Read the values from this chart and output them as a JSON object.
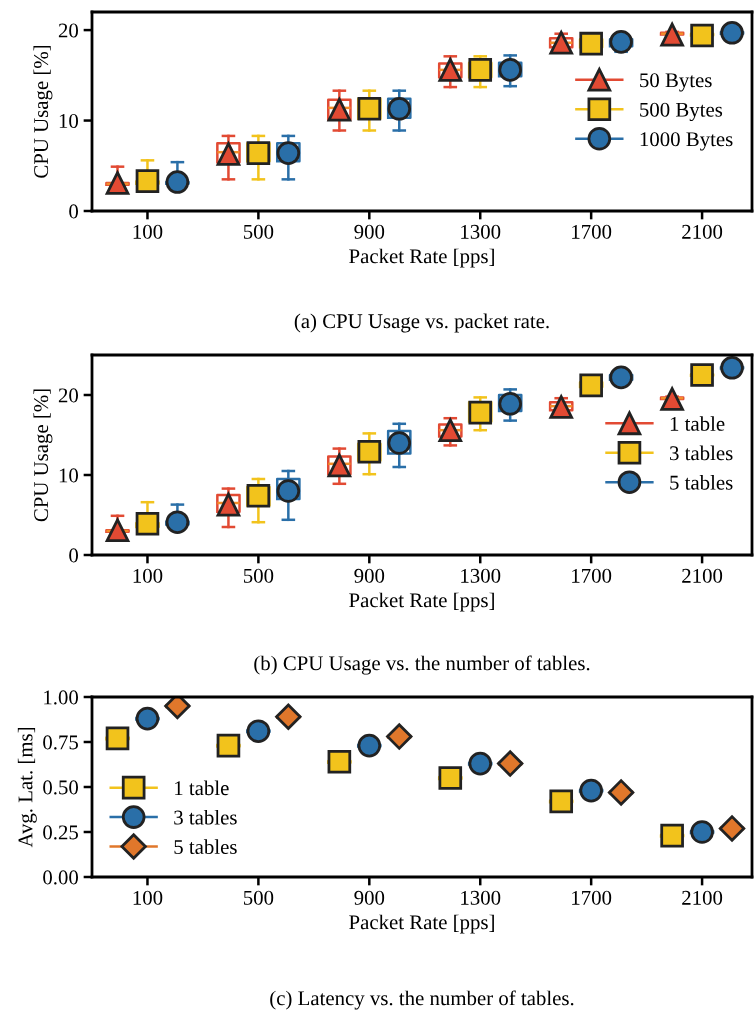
{
  "chart_data": [
    {
      "type": "box",
      "xlabel": "Packet Rate [pps]",
      "ylabel": "CPU Usage [%]",
      "categories": [
        "100",
        "500",
        "900",
        "1300",
        "1700",
        "2100"
      ],
      "ylim": [
        0,
        22
      ],
      "yticks": [
        0,
        10,
        20
      ],
      "grid": false,
      "legend": "right",
      "annotations": [
        "(a) CPU Usage vs. packet rate."
      ],
      "series": [
        {
          "name": "50 Bytes",
          "color": "#e24a33",
          "marker": "triangle",
          "boxes": [
            {
              "low": 2.8,
              "q1": 2.9,
              "median": 3.0,
              "q3": 3.1,
              "high": 4.9,
              "mean": 3.1
            },
            {
              "low": 3.5,
              "q1": 5.4,
              "median": 6.5,
              "q3": 7.5,
              "high": 8.3,
              "mean": 6.3
            },
            {
              "low": 8.9,
              "q1": 10.1,
              "median": 11.4,
              "q3": 12.3,
              "high": 13.3,
              "mean": 11.2
            },
            {
              "low": 13.7,
              "q1": 14.8,
              "median": 15.6,
              "q3": 16.3,
              "high": 17.1,
              "mean": 15.6
            },
            {
              "low": 17.6,
              "q1": 18.1,
              "median": 18.6,
              "q3": 19.1,
              "high": 19.6,
              "mean": 18.6
            },
            {
              "low": 19.4,
              "q1": 19.5,
              "median": 19.6,
              "q3": 19.7,
              "high": 19.8,
              "mean": 19.5
            }
          ]
        },
        {
          "name": "500 Bytes",
          "color": "#f2c31c",
          "marker": "square",
          "boxes": [
            {
              "low": 2.9,
              "q1": 3.0,
              "median": 3.1,
              "q3": 3.3,
              "high": 5.6,
              "mean": 3.3
            },
            {
              "low": 3.5,
              "q1": 5.5,
              "median": 6.6,
              "q3": 7.5,
              "high": 8.3,
              "mean": 6.4
            },
            {
              "low": 8.9,
              "q1": 10.2,
              "median": 11.4,
              "q3": 12.4,
              "high": 13.3,
              "mean": 11.3
            },
            {
              "low": 13.7,
              "q1": 14.8,
              "median": 15.6,
              "q3": 16.4,
              "high": 17.1,
              "mean": 15.6
            },
            {
              "low": 17.6,
              "q1": 18.1,
              "median": 18.6,
              "q3": 19.0,
              "high": 19.5,
              "mean": 18.5
            },
            {
              "low": 19.3,
              "q1": 19.4,
              "median": 19.5,
              "q3": 19.6,
              "high": 19.7,
              "mean": 19.4
            }
          ]
        },
        {
          "name": "1000 Bytes",
          "color": "#2a6fa8",
          "marker": "circle",
          "boxes": [
            {
              "low": 2.9,
              "q1": 3.0,
              "median": 3.1,
              "q3": 3.2,
              "high": 5.4,
              "mean": 3.2
            },
            {
              "low": 3.5,
              "q1": 5.5,
              "median": 6.6,
              "q3": 7.5,
              "high": 8.3,
              "mean": 6.4
            },
            {
              "low": 8.9,
              "q1": 10.3,
              "median": 11.4,
              "q3": 12.4,
              "high": 13.3,
              "mean": 11.3
            },
            {
              "low": 13.8,
              "q1": 14.9,
              "median": 15.6,
              "q3": 16.4,
              "high": 17.2,
              "mean": 15.6
            },
            {
              "low": 17.6,
              "q1": 18.2,
              "median": 18.7,
              "q3": 19.0,
              "high": 19.5,
              "mean": 18.7
            },
            {
              "low": 19.6,
              "q1": 19.6,
              "median": 19.7,
              "q3": 19.8,
              "high": 19.8,
              "mean": 19.7
            }
          ]
        }
      ]
    },
    {
      "type": "box",
      "xlabel": "Packet Rate [pps]",
      "ylabel": "CPU Usage [%]",
      "categories": [
        "100",
        "500",
        "900",
        "1300",
        "1700",
        "2100"
      ],
      "ylim": [
        0,
        25
      ],
      "yticks": [
        0,
        10,
        20
      ],
      "grid": false,
      "legend": "right",
      "annotations": [
        "(b) CPU Usage vs. the number of tables."
      ],
      "series": [
        {
          "name": "1 table",
          "color": "#e24a33",
          "marker": "triangle",
          "boxes": [
            {
              "low": 2.8,
              "q1": 2.9,
              "median": 3.0,
              "q3": 3.1,
              "high": 4.9,
              "mean": 3.1
            },
            {
              "low": 3.5,
              "q1": 5.4,
              "median": 6.5,
              "q3": 7.5,
              "high": 8.3,
              "mean": 6.3
            },
            {
              "low": 8.9,
              "q1": 10.1,
              "median": 11.4,
              "q3": 12.3,
              "high": 13.3,
              "mean": 11.2
            },
            {
              "low": 13.7,
              "q1": 14.8,
              "median": 15.6,
              "q3": 16.3,
              "high": 17.1,
              "mean": 15.6
            },
            {
              "low": 17.6,
              "q1": 18.1,
              "median": 18.6,
              "q3": 19.1,
              "high": 19.6,
              "mean": 18.5
            },
            {
              "low": 19.4,
              "q1": 19.5,
              "median": 19.6,
              "q3": 19.7,
              "high": 19.8,
              "mean": 19.5
            }
          ]
        },
        {
          "name": "3 tables",
          "color": "#f2c31c",
          "marker": "square",
          "boxes": [
            {
              "low": 3.4,
              "q1": 3.5,
              "median": 3.7,
              "q3": 4.0,
              "high": 6.6,
              "mean": 3.9
            },
            {
              "low": 4.1,
              "q1": 6.2,
              "median": 7.4,
              "q3": 8.5,
              "high": 9.5,
              "mean": 7.4
            },
            {
              "low": 10.1,
              "q1": 11.8,
              "median": 13.0,
              "q3": 13.9,
              "high": 15.2,
              "mean": 12.9
            },
            {
              "low": 15.6,
              "q1": 16.7,
              "median": 17.8,
              "q3": 19.1,
              "high": 19.7,
              "mean": 17.8
            },
            {
              "low": 20.8,
              "q1": 21.0,
              "median": 21.3,
              "q3": 21.6,
              "high": 21.8,
              "mean": 21.2
            },
            {
              "low": 22.3,
              "q1": 22.4,
              "median": 22.5,
              "q3": 22.6,
              "high": 22.7,
              "mean": 22.5
            }
          ]
        },
        {
          "name": "5 tables",
          "color": "#2a6fa8",
          "marker": "circle",
          "boxes": [
            {
              "low": 3.6,
              "q1": 3.8,
              "median": 4.0,
              "q3": 4.2,
              "high": 6.3,
              "mean": 4.1
            },
            {
              "low": 4.4,
              "q1": 7.0,
              "median": 8.3,
              "q3": 9.5,
              "high": 10.5,
              "mean": 8.0
            },
            {
              "low": 11.0,
              "q1": 12.7,
              "median": 14.2,
              "q3": 15.5,
              "high": 16.4,
              "mean": 14.0
            },
            {
              "low": 16.8,
              "q1": 18.0,
              "median": 19.0,
              "q3": 20.0,
              "high": 20.7,
              "mean": 18.9
            },
            {
              "low": 21.7,
              "q1": 21.9,
              "median": 22.2,
              "q3": 22.5,
              "high": 22.7,
              "mean": 22.2
            },
            {
              "low": 23.2,
              "q1": 23.3,
              "median": 23.4,
              "q3": 23.5,
              "high": 23.6,
              "mean": 23.4
            }
          ]
        }
      ]
    },
    {
      "type": "box",
      "xlabel": "Packet Rate [pps]",
      "ylabel": "Avg. Lat. [ms]",
      "categories": [
        "100",
        "500",
        "900",
        "1300",
        "1700",
        "2100"
      ],
      "ylim": [
        0,
        1
      ],
      "yticks": [
        {
          "value": 0,
          "label": "0.00"
        },
        {
          "value": 0.25,
          "label": "0.25"
        },
        {
          "value": 0.5,
          "label": "0.50"
        },
        {
          "value": 0.75,
          "label": "0.75"
        },
        {
          "value": 1,
          "label": "1.00"
        }
      ],
      "grid": false,
      "legend": "bottom left",
      "annotations": [
        "(c) Latency vs. the number of tables."
      ],
      "series": [
        {
          "name": "1 table",
          "color": "#f2c31c",
          "marker": "square",
          "boxes": [
            {
              "low": 0.765,
              "q1": 0.765,
              "median": 0.77,
              "q3": 0.775,
              "high": 0.775,
              "mean": 0.77
            },
            {
              "low": 0.725,
              "q1": 0.725,
              "median": 0.73,
              "q3": 0.735,
              "high": 0.735,
              "mean": 0.73
            },
            {
              "low": 0.635,
              "q1": 0.635,
              "median": 0.64,
              "q3": 0.645,
              "high": 0.645,
              "mean": 0.64
            },
            {
              "low": 0.545,
              "q1": 0.545,
              "median": 0.55,
              "q3": 0.555,
              "high": 0.555,
              "mean": 0.55
            },
            {
              "low": 0.415,
              "q1": 0.415,
              "median": 0.42,
              "q3": 0.425,
              "high": 0.425,
              "mean": 0.42
            },
            {
              "low": 0.225,
              "q1": 0.225,
              "median": 0.23,
              "q3": 0.235,
              "high": 0.235,
              "mean": 0.23
            }
          ]
        },
        {
          "name": "3 tables",
          "color": "#2a6fa8",
          "marker": "circle",
          "boxes": [
            {
              "low": 0.875,
              "q1": 0.875,
              "median": 0.88,
              "q3": 0.885,
              "high": 0.885,
              "mean": 0.88
            },
            {
              "low": 0.805,
              "q1": 0.805,
              "median": 0.81,
              "q3": 0.815,
              "high": 0.815,
              "mean": 0.81
            },
            {
              "low": 0.725,
              "q1": 0.725,
              "median": 0.73,
              "q3": 0.735,
              "high": 0.735,
              "mean": 0.73
            },
            {
              "low": 0.625,
              "q1": 0.625,
              "median": 0.63,
              "q3": 0.635,
              "high": 0.635,
              "mean": 0.63
            },
            {
              "low": 0.475,
              "q1": 0.475,
              "median": 0.48,
              "q3": 0.485,
              "high": 0.485,
              "mean": 0.48
            },
            {
              "low": 0.245,
              "q1": 0.245,
              "median": 0.25,
              "q3": 0.255,
              "high": 0.255,
              "mean": 0.25
            }
          ]
        },
        {
          "name": "5 tables",
          "color": "#e0772b",
          "marker": "diamond",
          "boxes": [
            {
              "low": 0.945,
              "q1": 0.945,
              "median": 0.95,
              "q3": 0.955,
              "high": 0.955,
              "mean": 0.95
            },
            {
              "low": 0.885,
              "q1": 0.885,
              "median": 0.89,
              "q3": 0.895,
              "high": 0.895,
              "mean": 0.89
            },
            {
              "low": 0.775,
              "q1": 0.775,
              "median": 0.78,
              "q3": 0.785,
              "high": 0.785,
              "mean": 0.78
            },
            {
              "low": 0.625,
              "q1": 0.625,
              "median": 0.63,
              "q3": 0.635,
              "high": 0.635,
              "mean": 0.63
            },
            {
              "low": 0.465,
              "q1": 0.465,
              "median": 0.47,
              "q3": 0.475,
              "high": 0.475,
              "mean": 0.47
            },
            {
              "low": 0.265,
              "q1": 0.265,
              "median": 0.27,
              "q3": 0.275,
              "high": 0.275,
              "mean": 0.27
            }
          ]
        }
      ]
    }
  ]
}
